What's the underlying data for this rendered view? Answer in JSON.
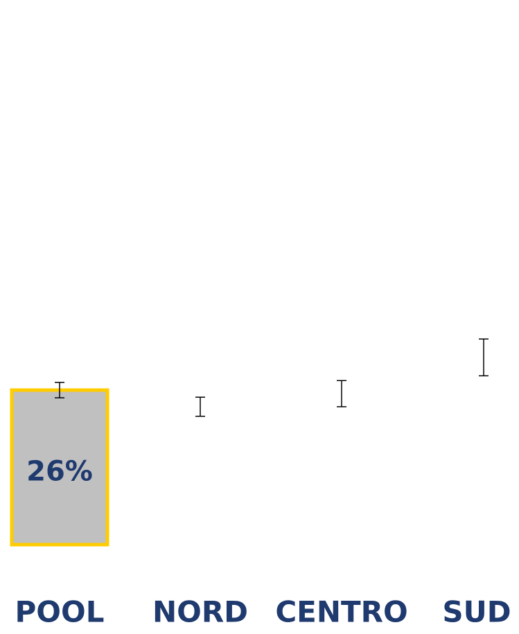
{
  "chart_data": {
    "type": "bar",
    "categories": [
      "POOL",
      "NORD",
      "CENTRO",
      "SUD"
    ],
    "values": [
      26,
      23.2,
      25.4,
      31.5
    ],
    "value_labels": [
      "26%",
      null,
      null,
      null
    ],
    "errors": [
      1.3,
      1.6,
      2.2,
      3.1
    ],
    "colors": [
      "#c0c0c0",
      "#ffffff",
      "#ffffff",
      "#ffffff"
    ],
    "edge_colors": [
      "#ffcc00",
      "#ffffff",
      "#ffffff",
      "#ffffff"
    ]
  }
}
